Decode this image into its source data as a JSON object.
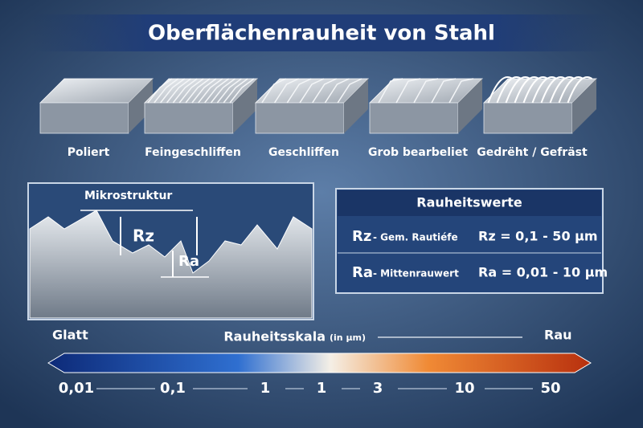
{
  "title": "Oberflächenrauheit von Stahl",
  "samples": [
    "Poliert",
    "Feingeschliffen",
    "Geschliffen",
    "Grob bearbeliet",
    "Gedrëht / Gefräst"
  ],
  "microstructure": {
    "title": "Mikrostruktur",
    "rz": "Rz",
    "ra": "Ra"
  },
  "table": {
    "title": "Rauheitswerte",
    "rows": [
      {
        "symbol": "Rz",
        "name": "- Gem. Rautiéfe",
        "value": "Rz = 0,1 - 50 µm"
      },
      {
        "symbol": "Ra",
        "name": "- Mittenrauwert",
        "value": "Ra = 0,01 - 10 µm"
      }
    ]
  },
  "scale": {
    "left": "Glatt",
    "title": "Rauheitsskala",
    "unit": "(in µm)",
    "right": "Rau",
    "ticks": [
      "0,01",
      "0,1",
      "1",
      "1",
      "3",
      "10",
      "50"
    ]
  }
}
